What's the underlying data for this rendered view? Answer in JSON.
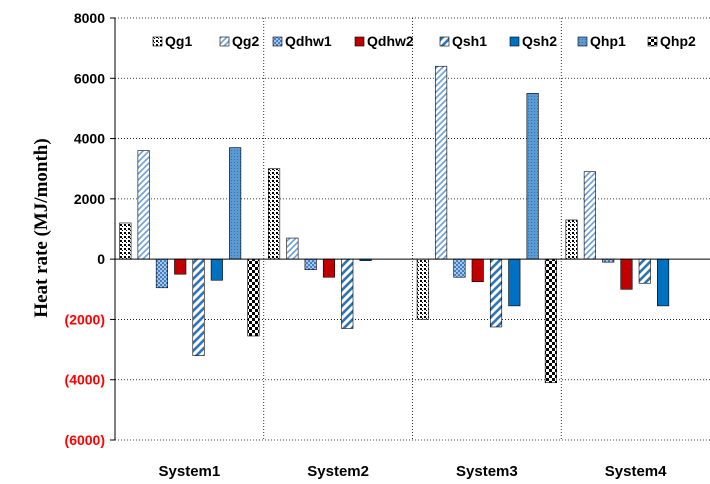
{
  "chart_data": {
    "type": "bar",
    "title": "",
    "xlabel": "",
    "ylabel": "Heat rate (MJ/month)",
    "ylim": [
      -6000,
      8000
    ],
    "yticks": [
      8000,
      6000,
      4000,
      2000,
      0,
      -2000,
      -4000,
      -6000
    ],
    "ytick_labels": [
      "8000",
      "6000",
      "4000",
      "2000",
      "0",
      "(2000)",
      "(4000)",
      "(6000)"
    ],
    "negative_tick_color": "#ff0000",
    "grid": "dotted",
    "legend_position": "top",
    "categories": [
      "System1",
      "System2",
      "System3",
      "System4"
    ],
    "series": [
      {
        "name": "Qg1",
        "values": [
          1200,
          3000,
          -2000,
          1300
        ],
        "color": "#000000",
        "pattern": "dots"
      },
      {
        "name": "Qg2",
        "values": [
          3600,
          700,
          6400,
          2900
        ],
        "color": "#6aa0d8",
        "pattern": "diag-light"
      },
      {
        "name": "Qdhw1",
        "values": [
          -950,
          -350,
          -600,
          -100
        ],
        "color": "#5b9bd5",
        "pattern": "checker"
      },
      {
        "name": "Qdhw2",
        "values": [
          -500,
          -600,
          -750,
          -1000
        ],
        "color": "#c00000",
        "pattern": "solid"
      },
      {
        "name": "Qsh1",
        "values": [
          -3200,
          -2300,
          -2250,
          -800
        ],
        "color": "#2e75b6",
        "pattern": "diag-wide"
      },
      {
        "name": "Qsh2",
        "values": [
          -700,
          -50,
          -1550,
          -1550
        ],
        "color": "#0070c0",
        "pattern": "solid"
      },
      {
        "name": "Qhp1",
        "values": [
          3700,
          0,
          5500,
          0
        ],
        "color": "#4f8fd6",
        "pattern": "fine-dots"
      },
      {
        "name": "Qhp2",
        "values": [
          -2550,
          0,
          -4100,
          0
        ],
        "color": "#000000",
        "pattern": "big-checker"
      }
    ]
  }
}
